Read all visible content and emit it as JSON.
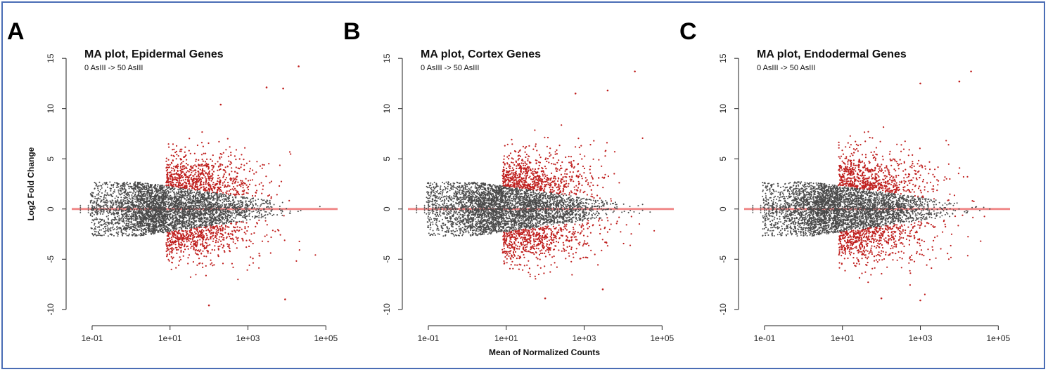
{
  "figure": {
    "shared_ylabel": "Log2 Fold Change",
    "shared_xlabel": "Mean of Normalized Counts",
    "colors": {
      "nonsignificant": "#4a4a4a",
      "significant": "#c0201f",
      "zero_line": "#f08a8a",
      "frame_border": "#4a6db5"
    }
  },
  "chart_data": [
    {
      "type": "scatter",
      "panel_label": "A",
      "title": "MA plot, Epidermal Genes",
      "subtitle": "0 AsIII -> 50 AsIII",
      "ylabel": "Log2 Fold Change",
      "xlabel": "",
      "x_scale": "log10",
      "xlim": [
        0.03,
        200000
      ],
      "ylim": [
        -10.5,
        15.5
      ],
      "x_ticks": [
        "1e-01",
        "1e+01",
        "1e+03",
        "1e+05"
      ],
      "x_tick_values": [
        0.1,
        10,
        1000,
        100000
      ],
      "y_ticks": [
        -10,
        -5,
        0,
        5,
        10,
        15
      ],
      "reference_line": 0,
      "series": [
        {
          "role": "nonsignificant",
          "color": "#4a4a4a"
        },
        {
          "role": "significant",
          "color": "#c0201f"
        }
      ],
      "notable_points": [
        {
          "x": 20000,
          "y": 14.2
        },
        {
          "x": 3000,
          "y": 12.1
        },
        {
          "x": 8000,
          "y": 12.0
        },
        {
          "x": 200,
          "y": 10.4
        },
        {
          "x": 100,
          "y": -9.6
        },
        {
          "x": 9000,
          "y": -9.0
        }
      ]
    },
    {
      "type": "scatter",
      "panel_label": "B",
      "title": "MA plot, Cortex Genes",
      "subtitle": "0 AsIII -> 50 AsIII",
      "ylabel": "",
      "xlabel": "Mean of Normalized Counts",
      "x_scale": "log10",
      "xlim": [
        0.03,
        200000
      ],
      "ylim": [
        -10.5,
        15.5
      ],
      "x_ticks": [
        "1e-01",
        "1e+01",
        "1e+03",
        "1e+05"
      ],
      "x_tick_values": [
        0.1,
        10,
        1000,
        100000
      ],
      "y_ticks": [
        -10,
        -5,
        0,
        5,
        10,
        15
      ],
      "reference_line": 0,
      "series": [
        {
          "role": "nonsignificant",
          "color": "#4a4a4a"
        },
        {
          "role": "significant",
          "color": "#c0201f"
        }
      ],
      "notable_points": [
        {
          "x": 20000,
          "y": 13.7
        },
        {
          "x": 600,
          "y": 11.5
        },
        {
          "x": 4000,
          "y": 11.8
        },
        {
          "x": 100,
          "y": -8.9
        },
        {
          "x": 3000,
          "y": -8.0
        }
      ]
    },
    {
      "type": "scatter",
      "panel_label": "C",
      "title": "MA plot, Endodermal Genes",
      "subtitle": "0 AsIII -> 50 AsIII",
      "ylabel": "",
      "xlabel": "",
      "x_scale": "log10",
      "xlim": [
        0.03,
        200000
      ],
      "ylim": [
        -10.5,
        15.5
      ],
      "x_ticks": [
        "1e-01",
        "1e+01",
        "1e+03",
        "1e+05"
      ],
      "x_tick_values": [
        0.1,
        10,
        1000,
        100000
      ],
      "y_ticks": [
        -10,
        -5,
        0,
        5,
        10,
        15
      ],
      "reference_line": 0,
      "series": [
        {
          "role": "nonsignificant",
          "color": "#4a4a4a"
        },
        {
          "role": "significant",
          "color": "#c0201f"
        }
      ],
      "notable_points": [
        {
          "x": 20000,
          "y": 13.7
        },
        {
          "x": 10000,
          "y": 12.7
        },
        {
          "x": 1000,
          "y": 12.5
        },
        {
          "x": 1000,
          "y": -9.1
        },
        {
          "x": 100,
          "y": -8.9
        }
      ]
    }
  ]
}
